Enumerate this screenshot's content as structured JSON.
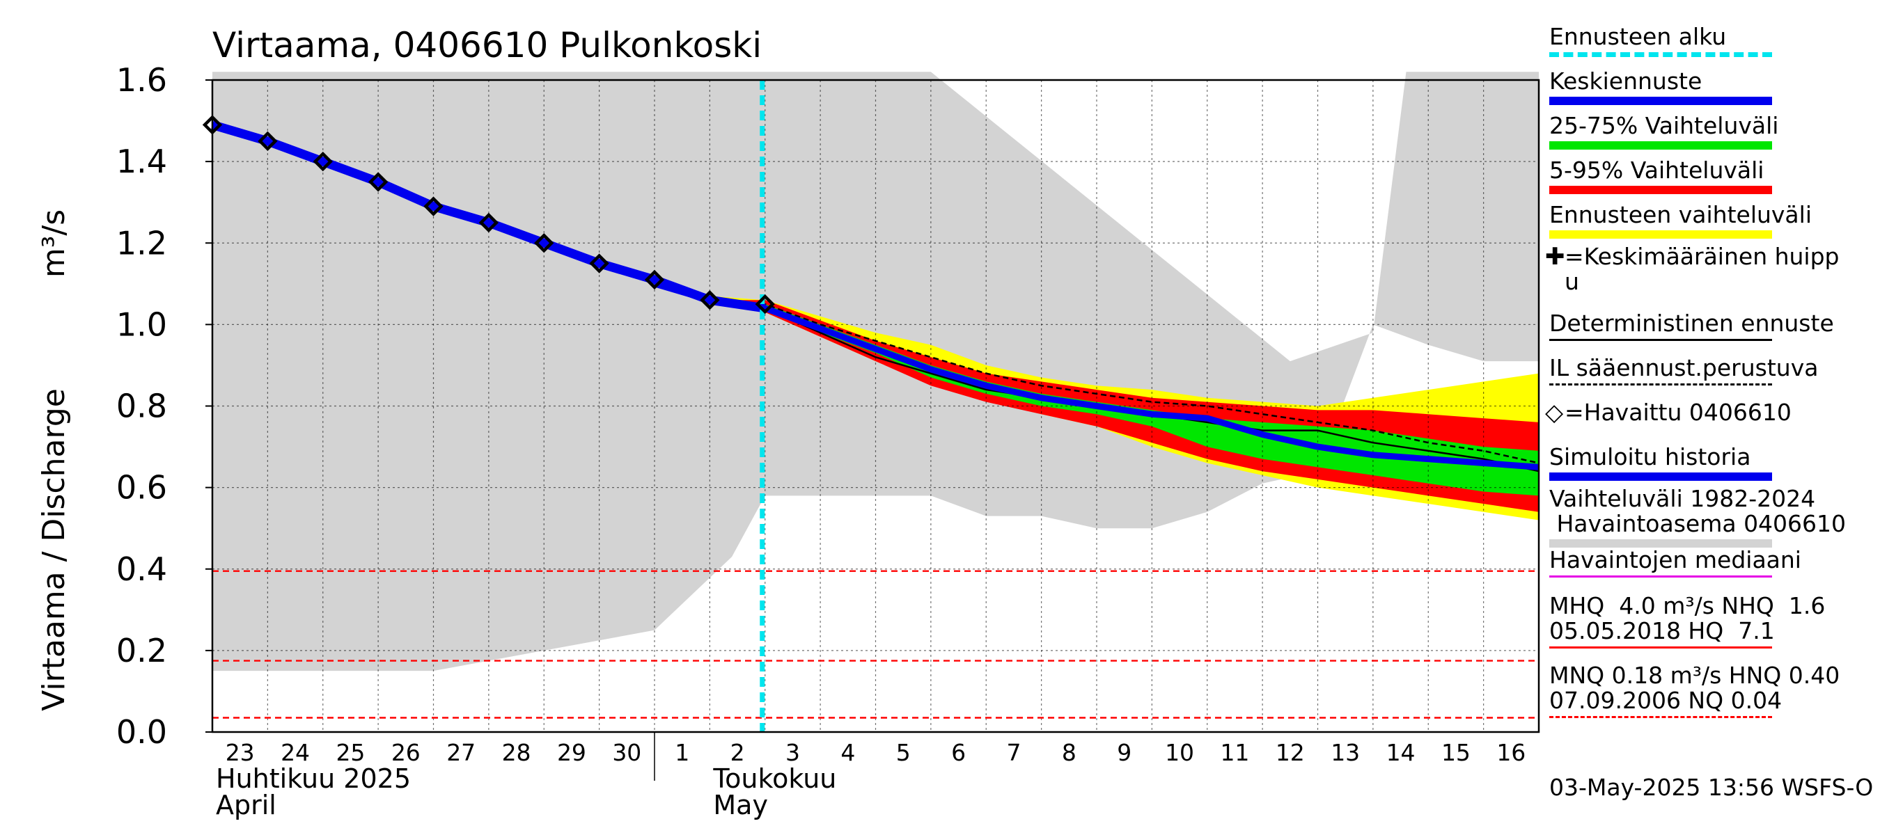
{
  "chart_data": {
    "type": "line",
    "title": "Virtaama, 0406610 Pulkonkoski",
    "ylabel_fi": "Virtaama / Discharge",
    "ylabel_unit": "m³/s",
    "ylim": [
      0,
      1.6
    ],
    "yticks": [
      "0.0",
      "0.2",
      "0.4",
      "0.6",
      "0.8",
      "1.0",
      "1.2",
      "1.4",
      "1.6"
    ],
    "x_start_day": 23,
    "x_end_day": 16,
    "xticks": [
      "23",
      "24",
      "25",
      "26",
      "27",
      "28",
      "29",
      "30",
      "1",
      "2",
      "3",
      "4",
      "5",
      "6",
      "7",
      "8",
      "9",
      "10",
      "11",
      "12",
      "13",
      "14",
      "15",
      "16"
    ],
    "month_labels": [
      {
        "fi": "Huhtikuu  2025",
        "en": "April",
        "at_day_index": 0
      },
      {
        "fi": "Toukokuu",
        "en": "May",
        "at_day_index": 9
      }
    ],
    "forecast_start_index": 10,
    "history_range": {
      "upper": [
        [
          0,
          1.62
        ],
        [
          13,
          1.62
        ],
        [
          19.5,
          0.91
        ],
        [
          21,
          0.98
        ],
        [
          21.6,
          1.62
        ],
        [
          24,
          1.62
        ]
      ],
      "lower": [
        [
          0,
          0.15
        ],
        [
          4,
          0.15
        ],
        [
          6,
          0.2
        ],
        [
          8,
          0.25
        ],
        [
          9.4,
          0.43
        ],
        [
          10,
          0.58
        ],
        [
          13,
          0.58
        ],
        [
          14,
          0.53
        ],
        [
          15,
          0.53
        ],
        [
          16,
          0.5
        ],
        [
          17,
          0.5
        ],
        [
          18,
          0.54
        ],
        [
          19,
          0.61
        ],
        [
          20,
          0.64
        ],
        [
          21,
          1.0
        ],
        [
          22,
          0.95
        ],
        [
          23,
          0.91
        ],
        [
          24,
          0.91
        ]
      ]
    },
    "forecast_range_yellow": {
      "upper": [
        [
          8,
          1.1
        ],
        [
          9,
          1.07
        ],
        [
          10,
          1.06
        ],
        [
          11,
          1.02
        ],
        [
          12,
          0.98
        ],
        [
          13,
          0.95
        ],
        [
          14,
          0.9
        ],
        [
          15,
          0.87
        ],
        [
          16,
          0.85
        ],
        [
          17,
          0.84
        ],
        [
          18,
          0.82
        ],
        [
          19,
          0.81
        ],
        [
          20,
          0.8
        ],
        [
          21,
          0.82
        ],
        [
          22,
          0.84
        ],
        [
          23,
          0.86
        ],
        [
          24,
          0.88
        ]
      ],
      "lower": [
        [
          8,
          1.1
        ],
        [
          9,
          1.06
        ],
        [
          10,
          1.03
        ],
        [
          11,
          0.97
        ],
        [
          12,
          0.91
        ],
        [
          13,
          0.86
        ],
        [
          14,
          0.82
        ],
        [
          15,
          0.78
        ],
        [
          16,
          0.75
        ],
        [
          17,
          0.7
        ],
        [
          18,
          0.66
        ],
        [
          19,
          0.63
        ],
        [
          20,
          0.6
        ],
        [
          21,
          0.58
        ],
        [
          22,
          0.56
        ],
        [
          23,
          0.54
        ],
        [
          24,
          0.52
        ]
      ]
    },
    "band_5_95": {
      "upper": [
        [
          8,
          1.1
        ],
        [
          9,
          1.06
        ],
        [
          10,
          1.06
        ],
        [
          11,
          1.01
        ],
        [
          12,
          0.96
        ],
        [
          13,
          0.92
        ],
        [
          14,
          0.88
        ],
        [
          15,
          0.86
        ],
        [
          16,
          0.84
        ],
        [
          17,
          0.82
        ],
        [
          18,
          0.81
        ],
        [
          19,
          0.8
        ],
        [
          20,
          0.79
        ],
        [
          21,
          0.79
        ],
        [
          22,
          0.78
        ],
        [
          23,
          0.77
        ],
        [
          24,
          0.76
        ]
      ],
      "lower": [
        [
          8,
          1.1
        ],
        [
          9,
          1.06
        ],
        [
          10,
          1.03
        ],
        [
          11,
          0.97
        ],
        [
          12,
          0.91
        ],
        [
          13,
          0.85
        ],
        [
          14,
          0.81
        ],
        [
          15,
          0.78
        ],
        [
          16,
          0.75
        ],
        [
          17,
          0.71
        ],
        [
          18,
          0.67
        ],
        [
          19,
          0.64
        ],
        [
          20,
          0.62
        ],
        [
          21,
          0.6
        ],
        [
          22,
          0.58
        ],
        [
          23,
          0.56
        ],
        [
          24,
          0.54
        ]
      ]
    },
    "band_25_75": {
      "upper": [
        [
          8,
          1.1
        ],
        [
          9,
          1.06
        ],
        [
          10,
          1.05
        ],
        [
          11,
          1.0
        ],
        [
          12,
          0.95
        ],
        [
          13,
          0.9
        ],
        [
          14,
          0.86
        ],
        [
          15,
          0.83
        ],
        [
          16,
          0.81
        ],
        [
          17,
          0.79
        ],
        [
          18,
          0.77
        ],
        [
          19,
          0.76
        ],
        [
          20,
          0.75
        ],
        [
          21,
          0.74
        ],
        [
          22,
          0.72
        ],
        [
          23,
          0.7
        ],
        [
          24,
          0.69
        ]
      ],
      "lower": [
        [
          8,
          1.1
        ],
        [
          9,
          1.06
        ],
        [
          10,
          1.04
        ],
        [
          11,
          0.98
        ],
        [
          12,
          0.93
        ],
        [
          13,
          0.87
        ],
        [
          14,
          0.83
        ],
        [
          15,
          0.8
        ],
        [
          16,
          0.78
        ],
        [
          17,
          0.75
        ],
        [
          18,
          0.7
        ],
        [
          19,
          0.67
        ],
        [
          20,
          0.65
        ],
        [
          21,
          0.63
        ],
        [
          22,
          0.61
        ],
        [
          23,
          0.59
        ],
        [
          24,
          0.58
        ]
      ]
    },
    "mean_forecast": [
      [
        8,
        1.1
      ],
      [
        9,
        1.06
      ],
      [
        10,
        1.04
      ],
      [
        11,
        0.99
      ],
      [
        12,
        0.94
      ],
      [
        13,
        0.89
      ],
      [
        14,
        0.85
      ],
      [
        15,
        0.82
      ],
      [
        16,
        0.8
      ],
      [
        17,
        0.78
      ],
      [
        18,
        0.77
      ],
      [
        19,
        0.73
      ],
      [
        20,
        0.7
      ],
      [
        21,
        0.68
      ],
      [
        22,
        0.67
      ],
      [
        23,
        0.66
      ],
      [
        24,
        0.65
      ]
    ],
    "deterministic": [
      [
        8,
        1.1
      ],
      [
        9,
        1.06
      ],
      [
        10,
        1.04
      ],
      [
        11,
        0.98
      ],
      [
        12,
        0.92
      ],
      [
        13,
        0.88
      ],
      [
        14,
        0.84
      ],
      [
        15,
        0.82
      ],
      [
        16,
        0.8
      ],
      [
        17,
        0.78
      ],
      [
        18,
        0.76
      ],
      [
        19,
        0.74
      ],
      [
        20,
        0.74
      ],
      [
        21,
        0.71
      ],
      [
        22,
        0.69
      ],
      [
        23,
        0.67
      ],
      [
        24,
        0.64
      ]
    ],
    "il_forecast": [
      [
        8,
        1.1
      ],
      [
        9,
        1.06
      ],
      [
        10,
        1.05
      ],
      [
        11,
        1.0
      ],
      [
        12,
        0.96
      ],
      [
        13,
        0.92
      ],
      [
        14,
        0.88
      ],
      [
        15,
        0.85
      ],
      [
        16,
        0.83
      ],
      [
        17,
        0.81
      ],
      [
        18,
        0.8
      ],
      [
        19,
        0.78
      ],
      [
        20,
        0.76
      ],
      [
        21,
        0.74
      ],
      [
        22,
        0.71
      ],
      [
        23,
        0.69
      ],
      [
        24,
        0.66
      ]
    ],
    "simulated_history": [
      [
        0,
        1.49
      ],
      [
        1,
        1.45
      ],
      [
        2,
        1.4
      ],
      [
        3,
        1.35
      ],
      [
        4,
        1.29
      ],
      [
        5,
        1.25
      ],
      [
        6,
        1.2
      ],
      [
        7,
        1.15
      ],
      [
        8,
        1.11
      ],
      [
        9,
        1.06
      ],
      [
        10,
        1.04
      ]
    ],
    "observed": [
      [
        0,
        1.49
      ],
      [
        1,
        1.45
      ],
      [
        2,
        1.4
      ],
      [
        3,
        1.35
      ],
      [
        4,
        1.29
      ],
      [
        5,
        1.25
      ],
      [
        6,
        1.2
      ],
      [
        7,
        1.15
      ],
      [
        8,
        1.11
      ],
      [
        9,
        1.06
      ],
      [
        10,
        1.05
      ]
    ],
    "ref_lines": [
      {
        "name": "HNQ",
        "value": 0.395
      },
      {
        "name": "MNQ",
        "value": 0.175
      },
      {
        "name": "NQ",
        "value": 0.035
      }
    ],
    "colors": {
      "history": "#d3d3d3",
      "yellow": "#ffff00",
      "red": "#ff0000",
      "green": "#00e600",
      "blue": "#0000ee",
      "cyan": "#00e5ee",
      "magenta": "#e600e6",
      "grid": "#000000"
    }
  },
  "legend": [
    {
      "label": "Ennusteen alku",
      "style": "cyan-dash"
    },
    {
      "label": "Keskiennuste",
      "style": "blue"
    },
    {
      "label": "25-75% Vaihteluväli",
      "style": "green"
    },
    {
      "label": "5-95% Vaihteluväli",
      "style": "red"
    },
    {
      "label": "Ennusteen vaihteluväli",
      "style": "yellow"
    },
    {
      "label": "=Keskimääräinen huipp\nu",
      "style": "plus"
    },
    {
      "label": "Deterministinen ennuste",
      "style": "black"
    },
    {
      "label": "IL sääennust.perustuva",
      "style": "black-dash"
    },
    {
      "label": "=Havaittu 0406610",
      "style": "diamond"
    },
    {
      "label": "Simuloitu historia",
      "style": "blue"
    },
    {
      "label": "Vaihteluväli 1982-2024\n Havaintoasema 0406610",
      "style": "gray"
    },
    {
      "label": "Havaintojen mediaani",
      "style": "magenta"
    },
    {
      "label": "MHQ  4.0 m³/s NHQ  1.6\n05.05.2018 HQ  7.1",
      "style": "red-thin"
    },
    {
      "label": "MNQ 0.18 m³/s HNQ 0.40\n07.09.2006 NQ 0.04",
      "style": "red-dash"
    }
  ],
  "footer": "03-May-2025 13:56 WSFS-O"
}
